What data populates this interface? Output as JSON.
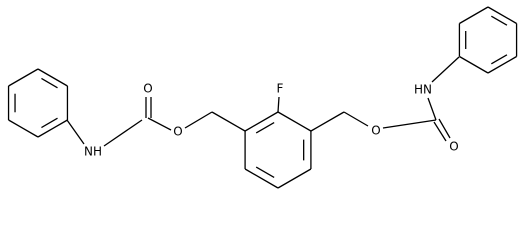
{
  "labels": [
    "O",
    "NH",
    "O",
    "F",
    "O",
    "HN",
    "O"
  ]
}
